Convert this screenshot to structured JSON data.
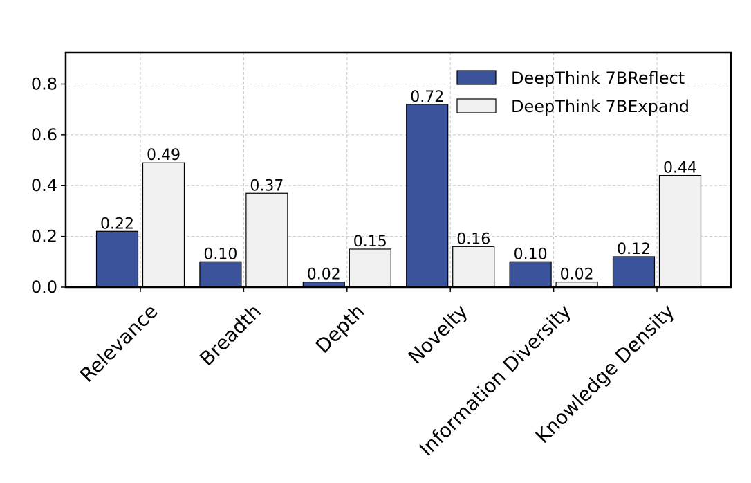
{
  "chart_data": {
    "type": "bar",
    "categories": [
      "Relevance",
      "Breadth",
      "Depth",
      "Novelty",
      "Information Diversity",
      "Knowledge Density"
    ],
    "series": [
      {
        "name": "DeepThink 7BReflect",
        "values": [
          0.22,
          0.1,
          0.02,
          0.72,
          0.1,
          0.12
        ],
        "color": "#3a539b"
      },
      {
        "name": "DeepThink 7BExpand",
        "values": [
          0.49,
          0.37,
          0.15,
          0.16,
          0.02,
          0.44
        ],
        "color": "#f0f0f0"
      }
    ],
    "data_labels": [
      [
        "0.22",
        "0.10",
        "0.02",
        "0.72",
        "0.10",
        "0.12"
      ],
      [
        "0.49",
        "0.37",
        "0.15",
        "0.16",
        "0.02",
        "0.44"
      ]
    ],
    "yticks": [
      "0.0",
      "0.2",
      "0.4",
      "0.6",
      "0.8"
    ],
    "ytick_values": [
      0.0,
      0.2,
      0.4,
      0.6,
      0.8
    ],
    "ylim": [
      0,
      0.924
    ],
    "grid": true,
    "legend_position": "top-right"
  }
}
